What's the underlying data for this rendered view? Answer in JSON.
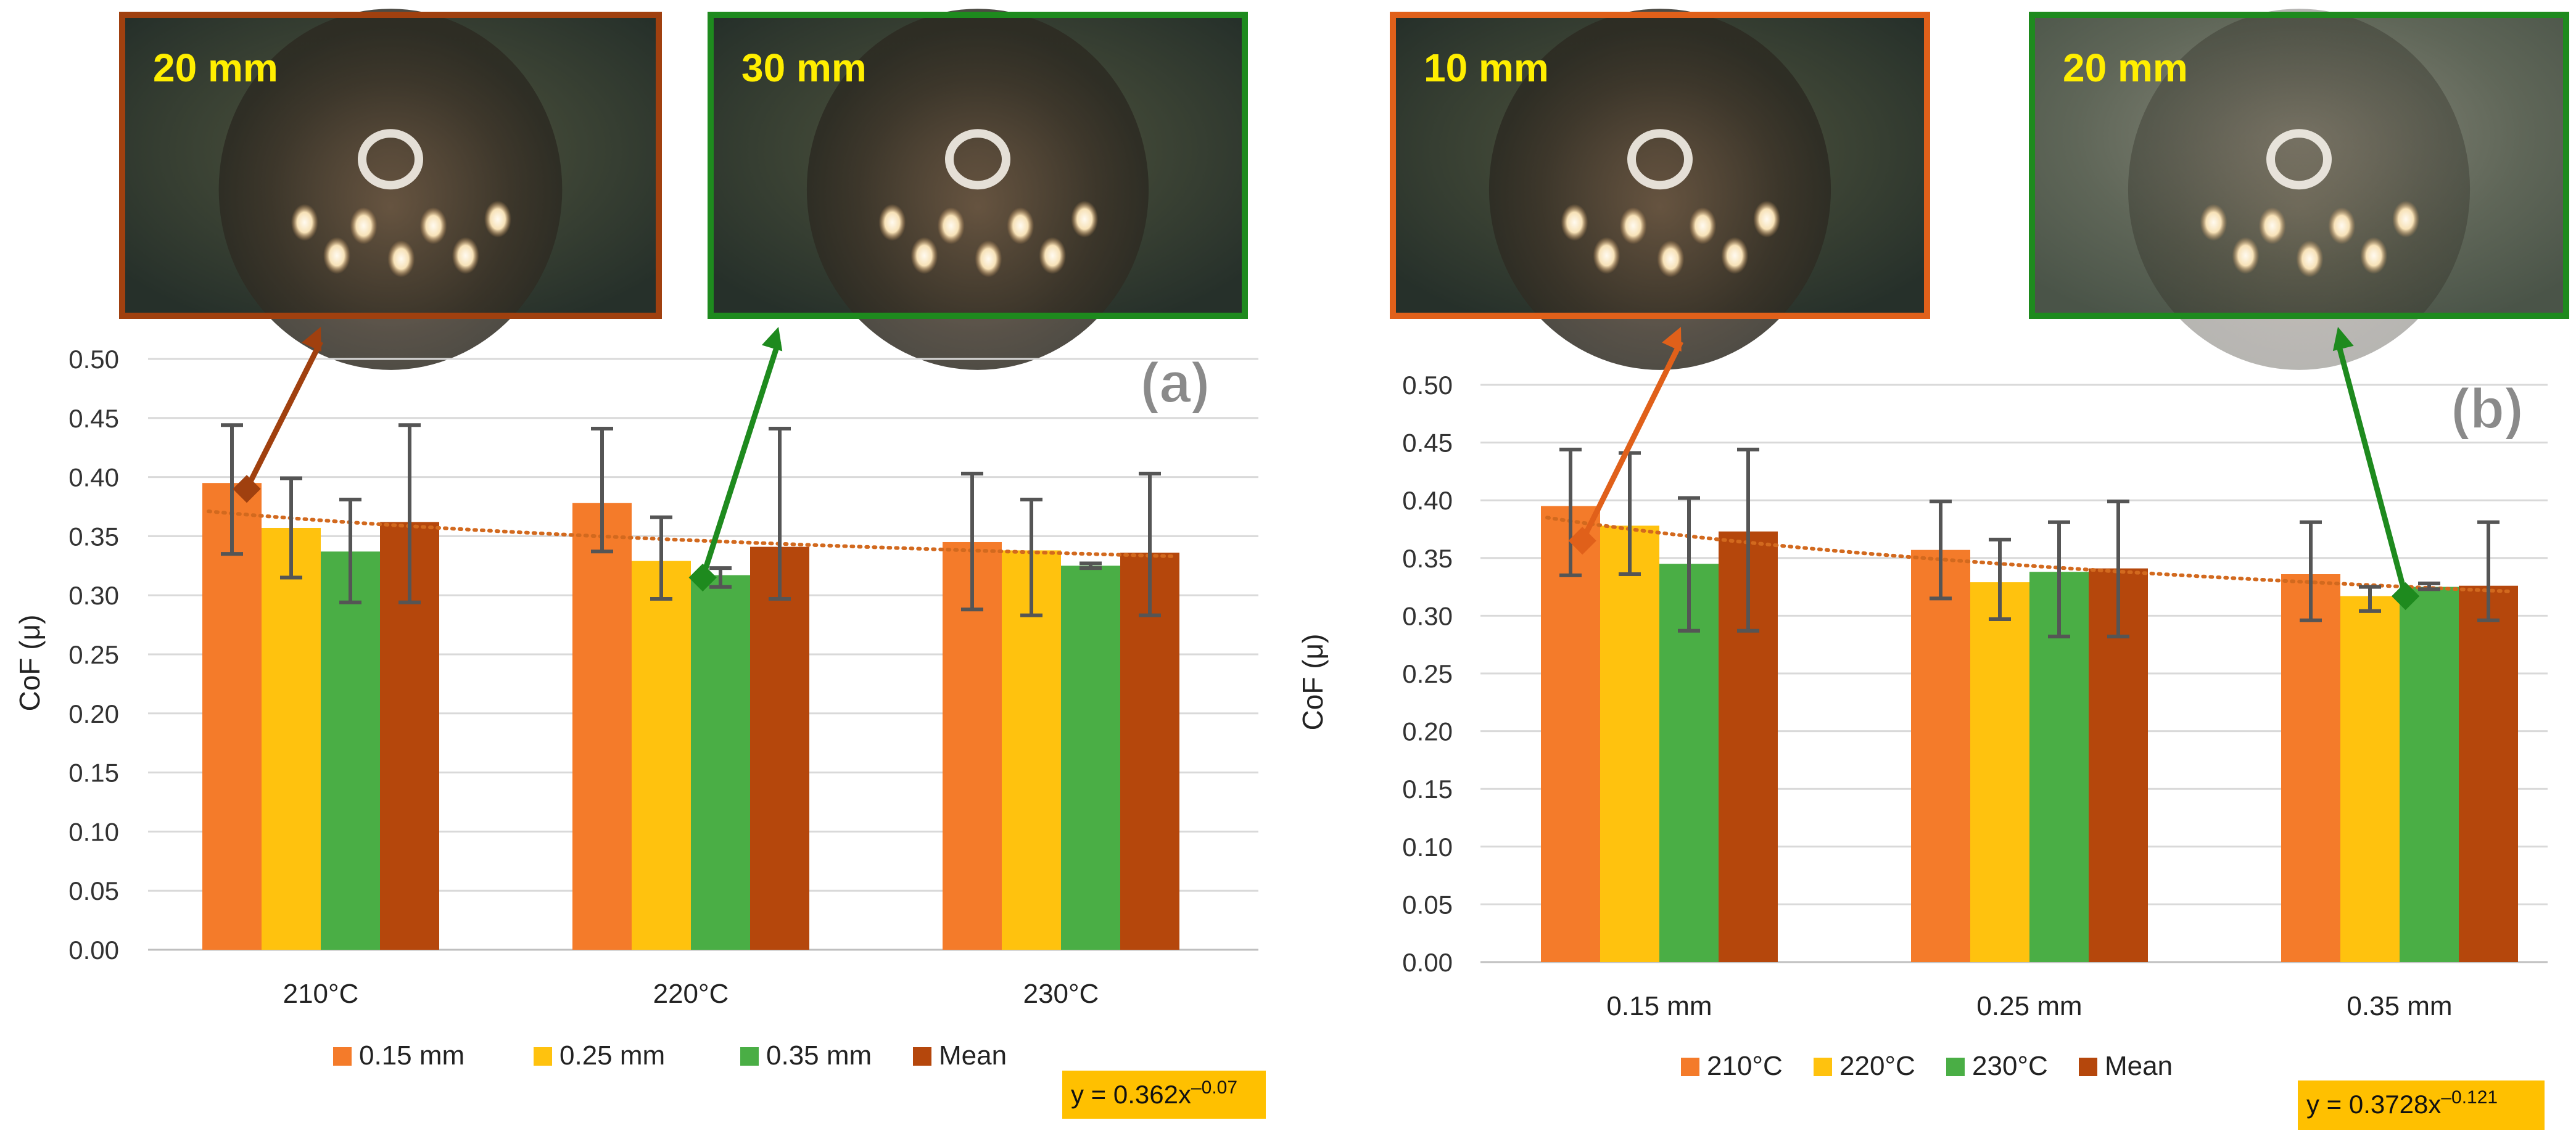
{
  "chart_data": [
    {
      "type": "bar",
      "panel_label": "(a)",
      "ylabel": "CoF (μ)",
      "ylim": [
        0,
        0.5
      ],
      "yticks": [
        "0.00",
        "0.05",
        "0.10",
        "0.15",
        "0.20",
        "0.25",
        "0.30",
        "0.35",
        "0.40",
        "0.45",
        "0.50"
      ],
      "categories": [
        "210°C",
        "220°C",
        "230°C"
      ],
      "series": [
        {
          "name": "0.15 mm",
          "color": "#F47B2A",
          "values": [
            0.395,
            0.378,
            0.345
          ],
          "err_low": [
            0.335,
            0.337,
            0.288
          ],
          "err_high": [
            0.444,
            0.441,
            0.403
          ]
        },
        {
          "name": "0.25 mm",
          "color": "#FFC20E",
          "values": [
            0.357,
            0.329,
            0.338
          ],
          "err_low": [
            0.315,
            0.297,
            0.283
          ],
          "err_high": [
            0.399,
            0.366,
            0.381
          ]
        },
        {
          "name": "0.35 mm",
          "color": "#4AAE45",
          "values": [
            0.337,
            0.317,
            0.325
          ],
          "err_low": [
            0.294,
            0.307,
            0.323
          ],
          "err_high": [
            0.381,
            0.323,
            0.327
          ]
        },
        {
          "name": "Mean",
          "color": "#B5470C",
          "values": [
            0.362,
            0.341,
            0.336
          ],
          "err_low": [
            0.294,
            0.297,
            0.283
          ],
          "err_high": [
            0.444,
            0.441,
            0.403
          ]
        }
      ],
      "trendline": {
        "equation": "y = 0.362x",
        "exponent": "–0.07",
        "start": 0.371,
        "end": 0.333,
        "color": "#D2691E"
      },
      "photos": [
        {
          "label": "20 mm",
          "border": "#A0400F",
          "target_category": 0,
          "target_value": 0.39
        },
        {
          "label": "30 mm",
          "border": "#1E8A1E",
          "target_category": 1,
          "target_value": 0.315
        }
      ]
    },
    {
      "type": "bar",
      "panel_label": "(b)",
      "ylabel": "CoF (μ)",
      "ylim": [
        0,
        0.5
      ],
      "yticks": [
        "0.00",
        "0.05",
        "0.10",
        "0.15",
        "0.20",
        "0.25",
        "0.30",
        "0.35",
        "0.40",
        "0.45",
        "0.50"
      ],
      "categories": [
        "0.15 mm",
        "0.25 mm",
        "0.35 mm"
      ],
      "series": [
        {
          "name": "210°C",
          "color": "#F47B2A",
          "values": [
            0.395,
            0.357,
            0.336
          ],
          "err_low": [
            0.335,
            0.315,
            0.296
          ],
          "err_high": [
            0.444,
            0.399,
            0.381
          ]
        },
        {
          "name": "220°C",
          "color": "#FFC20E",
          "values": [
            0.378,
            0.329,
            0.317
          ],
          "err_low": [
            0.336,
            0.297,
            0.304
          ],
          "err_high": [
            0.441,
            0.366,
            0.325
          ]
        },
        {
          "name": "230°C",
          "color": "#4AAE45",
          "values": [
            0.345,
            0.338,
            0.325
          ],
          "err_low": [
            0.287,
            0.282,
            0.323
          ],
          "err_high": [
            0.402,
            0.381,
            0.328
          ]
        },
        {
          "name": "Mean",
          "color": "#B5470C",
          "values": [
            0.373,
            0.341,
            0.326
          ],
          "err_low": [
            0.287,
            0.282,
            0.296
          ],
          "err_high": [
            0.444,
            0.399,
            0.381
          ]
        }
      ],
      "trendline": {
        "equation": "y = 0.3728x",
        "exponent": "–0.121",
        "start": 0.385,
        "end": 0.321,
        "color": "#D2691E"
      },
      "photos": [
        {
          "label": "10 mm",
          "border": "#E0601A",
          "target_category": 0,
          "target_value": 0.365
        },
        {
          "label": "20 mm",
          "border": "#1E8A1E",
          "target_category": 2,
          "target_value": 0.317
        }
      ]
    }
  ]
}
